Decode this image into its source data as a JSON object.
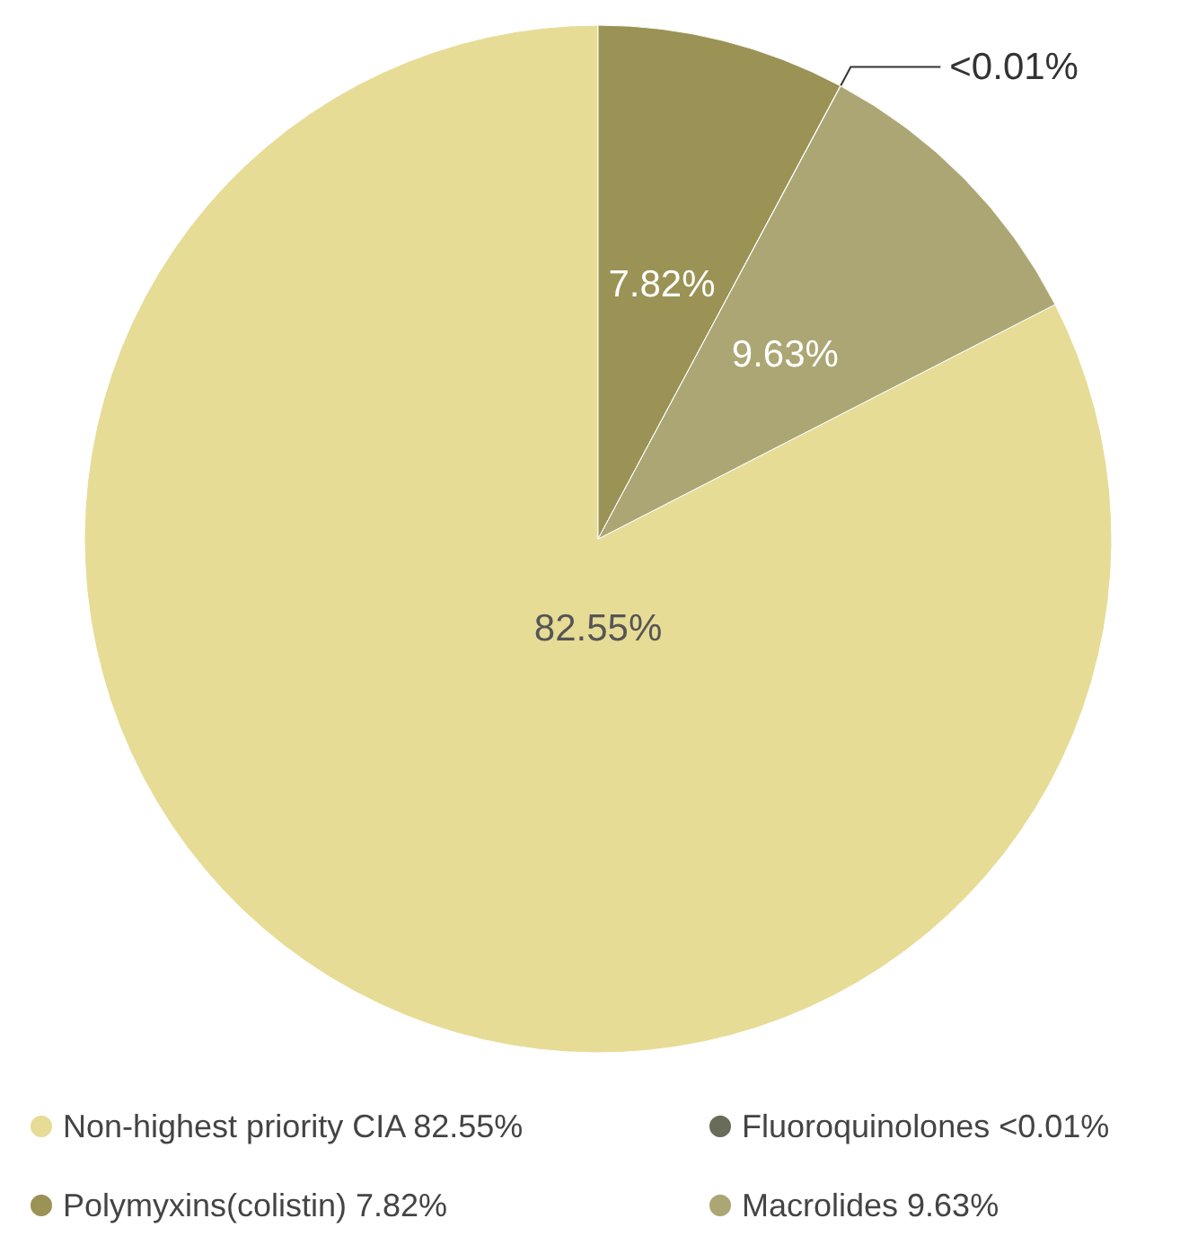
{
  "chart_data": {
    "type": "pie",
    "categories": [
      "Non-highest priority CIA",
      "Polymyxins(colistin)",
      "Fluoroquinolones",
      "Macrolides"
    ],
    "values": [
      82.55,
      7.82,
      0.01,
      9.63
    ],
    "value_labels": [
      "82.55%",
      "7.82%",
      "<0.01%",
      "9.63%"
    ],
    "colors": [
      "#e6dc96",
      "#9b9355",
      "#6b6b5a",
      "#aba674"
    ],
    "legend": "bottom"
  }
}
